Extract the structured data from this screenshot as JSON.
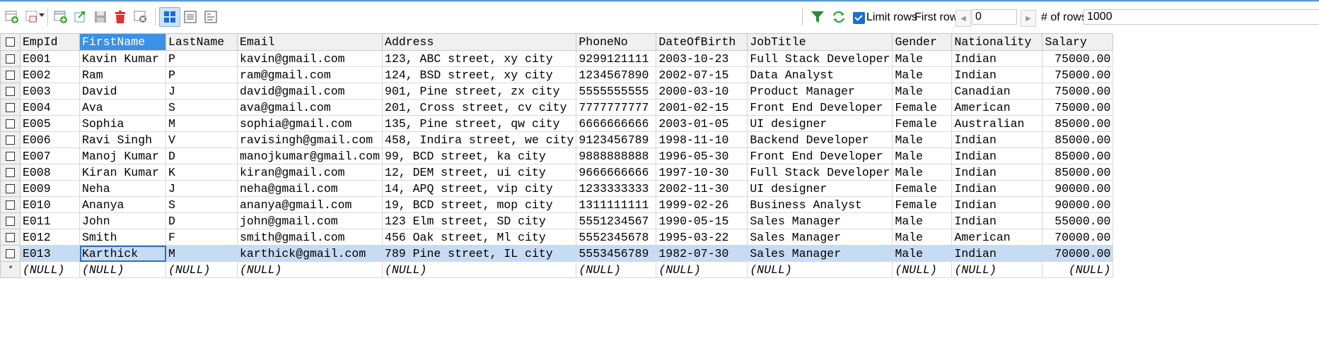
{
  "toolbar": {
    "limit_rows_label": "Limit rows",
    "limit_rows_checked": true,
    "first_row_label": "First row",
    "first_row_value": "0",
    "num_rows_label": "# of rows",
    "num_rows_value": "1000",
    "prev_glyph": "◀",
    "next_glyph": "▶",
    "icons": [
      "insert-row-icon",
      "insert-copy-icon",
      "dropdown-arrow-icon",
      "add-row-icon",
      "duplicate-row-icon",
      "save-icon",
      "delete-icon",
      "cancel-changes-icon",
      "grid-view-icon",
      "form-view-icon",
      "text-view-icon",
      "filter-icon",
      "refresh-icon"
    ]
  },
  "grid": {
    "columns": [
      "EmpId",
      "FirstName",
      "LastName",
      "Email",
      "Address",
      "PhoneNo",
      "DateOfBirth",
      "JobTitle",
      "Gender",
      "Nationality",
      "Salary"
    ],
    "selected_column": "FirstName",
    "rows": [
      [
        "E001",
        "Kavin Kumar",
        "P",
        "kavin@gmail.com",
        "123, ABC street, xy city",
        "9299121111",
        "2003-10-23",
        "Full Stack Developer",
        "Male",
        "Indian",
        "75000.00"
      ],
      [
        "E002",
        "Ram",
        "P",
        "ram@gmail.com",
        "124, BSD street, xy city",
        "1234567890",
        "2002-07-15",
        "Data Analyst",
        "Male",
        "Indian",
        "75000.00"
      ],
      [
        "E003",
        "David",
        "J",
        "david@gmail.com",
        "901, Pine street, zx city",
        "5555555555",
        "2000-03-10",
        "Product Manager",
        "Male",
        "Canadian",
        "75000.00"
      ],
      [
        "E004",
        "Ava",
        "S",
        "ava@gmail.com",
        "201, Cross street, cv city",
        "7777777777",
        "2001-02-15",
        "Front End Developer",
        "Female",
        "American",
        "75000.00"
      ],
      [
        "E005",
        "Sophia",
        "M",
        "sophia@gmail.com",
        "135, Pine street, qw city",
        "6666666666",
        "2003-01-05",
        "UI designer",
        "Female",
        "Australian",
        "85000.00"
      ],
      [
        "E006",
        "Ravi Singh",
        "V",
        "ravisingh@gmail.com",
        "458, Indira street, we city",
        "9123456789",
        "1998-11-10",
        "Backend Developer",
        "Male",
        "Indian",
        "85000.00"
      ],
      [
        "E007",
        "Manoj Kumar",
        "D",
        "manojkumar@gmail.com",
        "99, BCD street, ka city",
        "9888888888",
        "1996-05-30",
        "Front End Developer",
        "Male",
        "Indian",
        "85000.00"
      ],
      [
        "E008",
        "Kiran Kumar",
        "K",
        "kiran@gmail.com",
        "12, DEM street, ui city",
        "9666666666",
        "1997-10-30",
        "Full Stack Developer",
        "Male",
        "Indian",
        "85000.00"
      ],
      [
        "E009",
        "Neha",
        "J",
        "neha@gmail.com",
        "14, APQ street, vip city",
        "1233333333",
        "2002-11-30",
        "UI designer",
        "Female",
        "Indian",
        "90000.00"
      ],
      [
        "E010",
        "Ananya",
        "S",
        "ananya@gmail.com",
        "19, BCD street, mop city",
        "1311111111",
        "1999-02-26",
        "Business Analyst",
        "Female",
        "Indian",
        "90000.00"
      ],
      [
        "E011",
        "John",
        "D",
        "john@gmail.com",
        "123 Elm street, SD city",
        "5551234567",
        "1990-05-15",
        "Sales Manager",
        "Male",
        "Indian",
        "55000.00"
      ],
      [
        "E012",
        "Smith",
        "F",
        "smith@gmail.com",
        "456 Oak street, Ml city",
        "5552345678",
        "1995-03-22",
        "Sales Manager",
        "Male",
        "American",
        "70000.00"
      ],
      [
        "E013",
        "Karthick",
        "M",
        "karthick@gmail.com",
        "789 Pine street, IL city",
        "5553456789",
        "1982-07-30",
        "Sales Manager",
        "Male",
        "Indian",
        "70000.00"
      ]
    ],
    "selected_row_index": 12,
    "new_row_marker": "*",
    "null_text": "(NULL)"
  },
  "colors": {
    "accent": "#1a6fd1",
    "selected_header": "#3c90e6",
    "selected_row": "#c6dcf4",
    "filter_icon": "#2e8b2e",
    "delete_icon": "#e03030"
  }
}
